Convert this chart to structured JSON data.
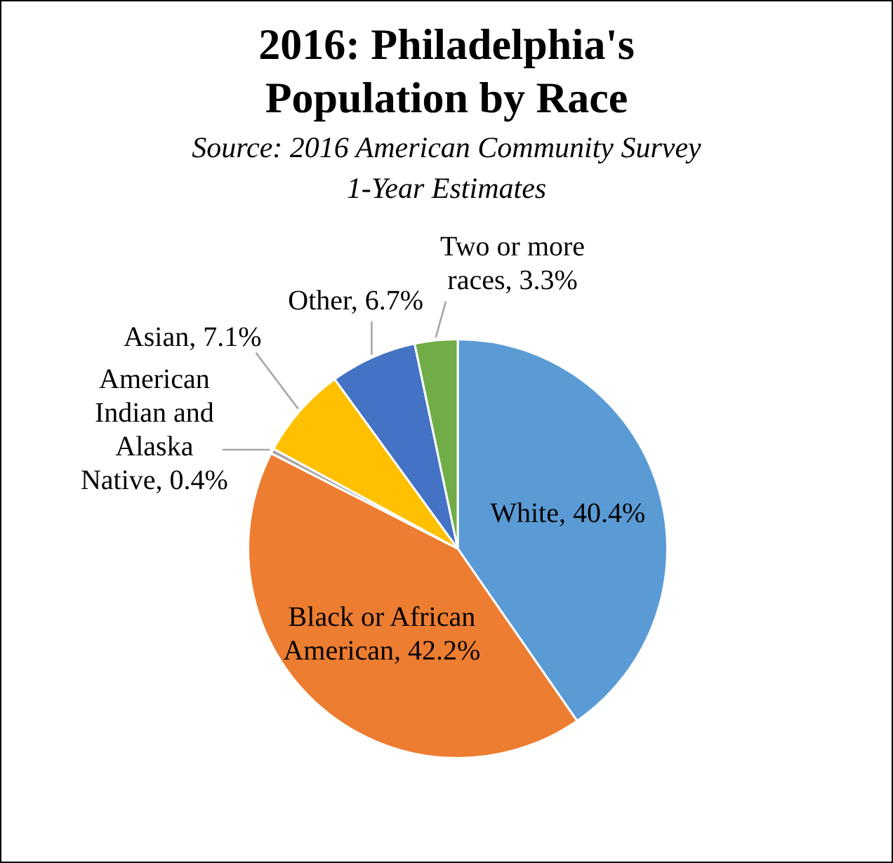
{
  "chart_data": {
    "type": "pie",
    "title": "2016: Philadelphia's Population by Race",
    "subtitle": "Source: 2016 American Community Survey 1-Year Estimates",
    "categories": [
      "White",
      "Black or African American",
      "American Indian and Alaska Native",
      "Asian",
      "Other",
      "Two or more races"
    ],
    "values": [
      40.4,
      42.2,
      0.4,
      7.1,
      6.7,
      3.3
    ],
    "value_labels": [
      "40.4%",
      "42.2%",
      "0.4%",
      "7.1%",
      "6.7%",
      "3.3%"
    ],
    "colors": [
      "#5b9bd5",
      "#ed7d31",
      "#a5a5a5",
      "#ffc000",
      "#4472c4",
      "#70ad47"
    ],
    "legend": false
  }
}
